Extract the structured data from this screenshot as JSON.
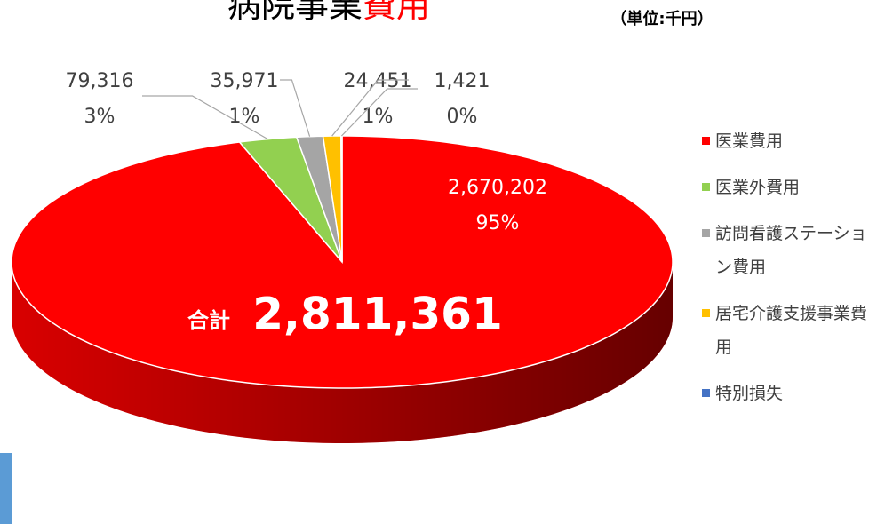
{
  "chart_data": {
    "type": "pie",
    "title_parts": [
      "病院事業",
      "費用"
    ],
    "unit_note": "（単位:千円）",
    "total_label": "合計",
    "total": "2,811,361",
    "categories": [
      "医業費用",
      "医業外費用",
      "訪問看護ステーション費用",
      "居宅介護支援事業費用",
      "特別損失"
    ],
    "values": [
      2670202,
      79316,
      35971,
      24451,
      1421
    ],
    "value_labels": [
      "2,670,202",
      "79,316",
      "35,971",
      "24,451",
      "1,421"
    ],
    "percent_labels": [
      "95%",
      "3%",
      "1%",
      "1%",
      "0%"
    ],
    "colors": [
      "#ff0000",
      "#92d050",
      "#a5a5a5",
      "#ffc000",
      "#4472c4"
    ],
    "title_colors": [
      "#000000",
      "#ff0000"
    ],
    "legend": "right"
  }
}
